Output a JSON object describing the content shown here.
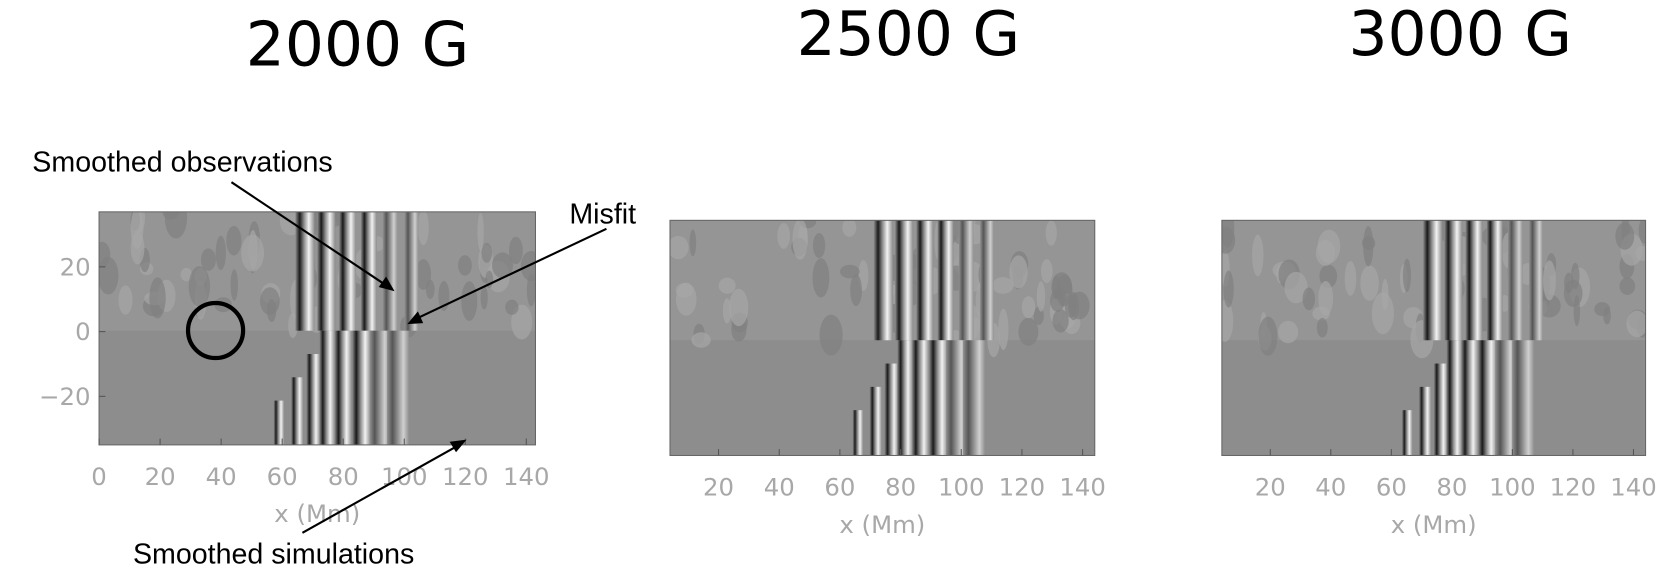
{
  "chart_data": [
    {
      "type": "heatmap",
      "title": "2000 G",
      "xlabel": "x (Mm)",
      "xlim": [
        0,
        143
      ],
      "xticks": [
        0,
        20,
        40,
        60,
        80,
        100,
        120,
        140
      ],
      "ylim": [
        -35,
        37
      ],
      "yticks": [
        {
          "value": -20,
          "label": "−20"
        },
        0,
        20
      ],
      "annotations": [
        "Smoothed observations",
        "Misfit",
        "Smoothed simulations"
      ]
    },
    {
      "type": "heatmap",
      "title": "2500 G",
      "xlabel": "x (Mm)",
      "xlim": [
        4,
        144
      ],
      "xticks": [
        20,
        40,
        60,
        80,
        100,
        120,
        140
      ],
      "ylim": [
        -35,
        37
      ]
    },
    {
      "type": "heatmap",
      "title": "3000 G",
      "xlabel": "x (Mm)",
      "xlim": [
        4,
        144
      ],
      "xticks": [
        20,
        40,
        60,
        80,
        100,
        120,
        140
      ],
      "ylim": [
        -35,
        37
      ]
    }
  ]
}
